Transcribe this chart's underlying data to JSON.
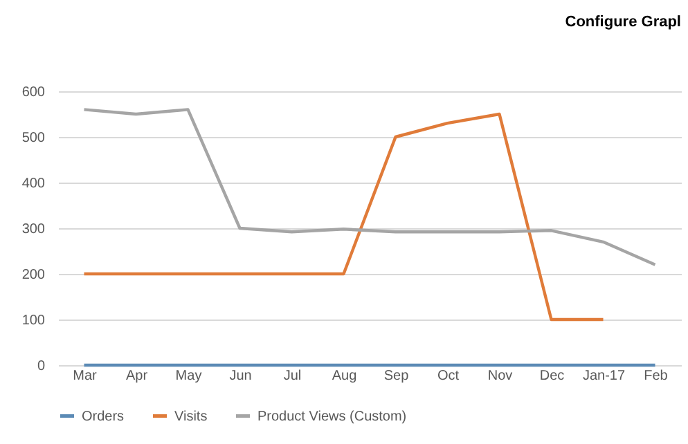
{
  "chart_data": {
    "type": "line",
    "title": "Configure Grapl",
    "categories": [
      "Mar",
      "Apr",
      "May",
      "Jun",
      "Jul",
      "Aug",
      "Sep",
      "Oct",
      "Nov",
      "Dec",
      "Jan-17",
      "Feb"
    ],
    "series": [
      {
        "name": "Orders",
        "color": "#5b8ab5",
        "values": [
          0,
          0,
          0,
          0,
          0,
          0,
          0,
          0,
          0,
          0,
          0,
          0
        ]
      },
      {
        "name": "Visits",
        "color": "#e07b39",
        "values": [
          200,
          200,
          200,
          200,
          200,
          200,
          500,
          530,
          550,
          100,
          100,
          null
        ]
      },
      {
        "name": "Product Views (Custom)",
        "color": "#a5a5a5",
        "values": [
          560,
          550,
          560,
          300,
          292,
          298,
          292,
          292,
          292,
          295,
          270,
          220
        ]
      }
    ],
    "ylim": [
      0,
      600
    ],
    "yticks": [
      0,
      100,
      200,
      300,
      400,
      500,
      600
    ],
    "grid": "y",
    "legend": "bottom",
    "line_style": "solid",
    "marker": "none"
  }
}
